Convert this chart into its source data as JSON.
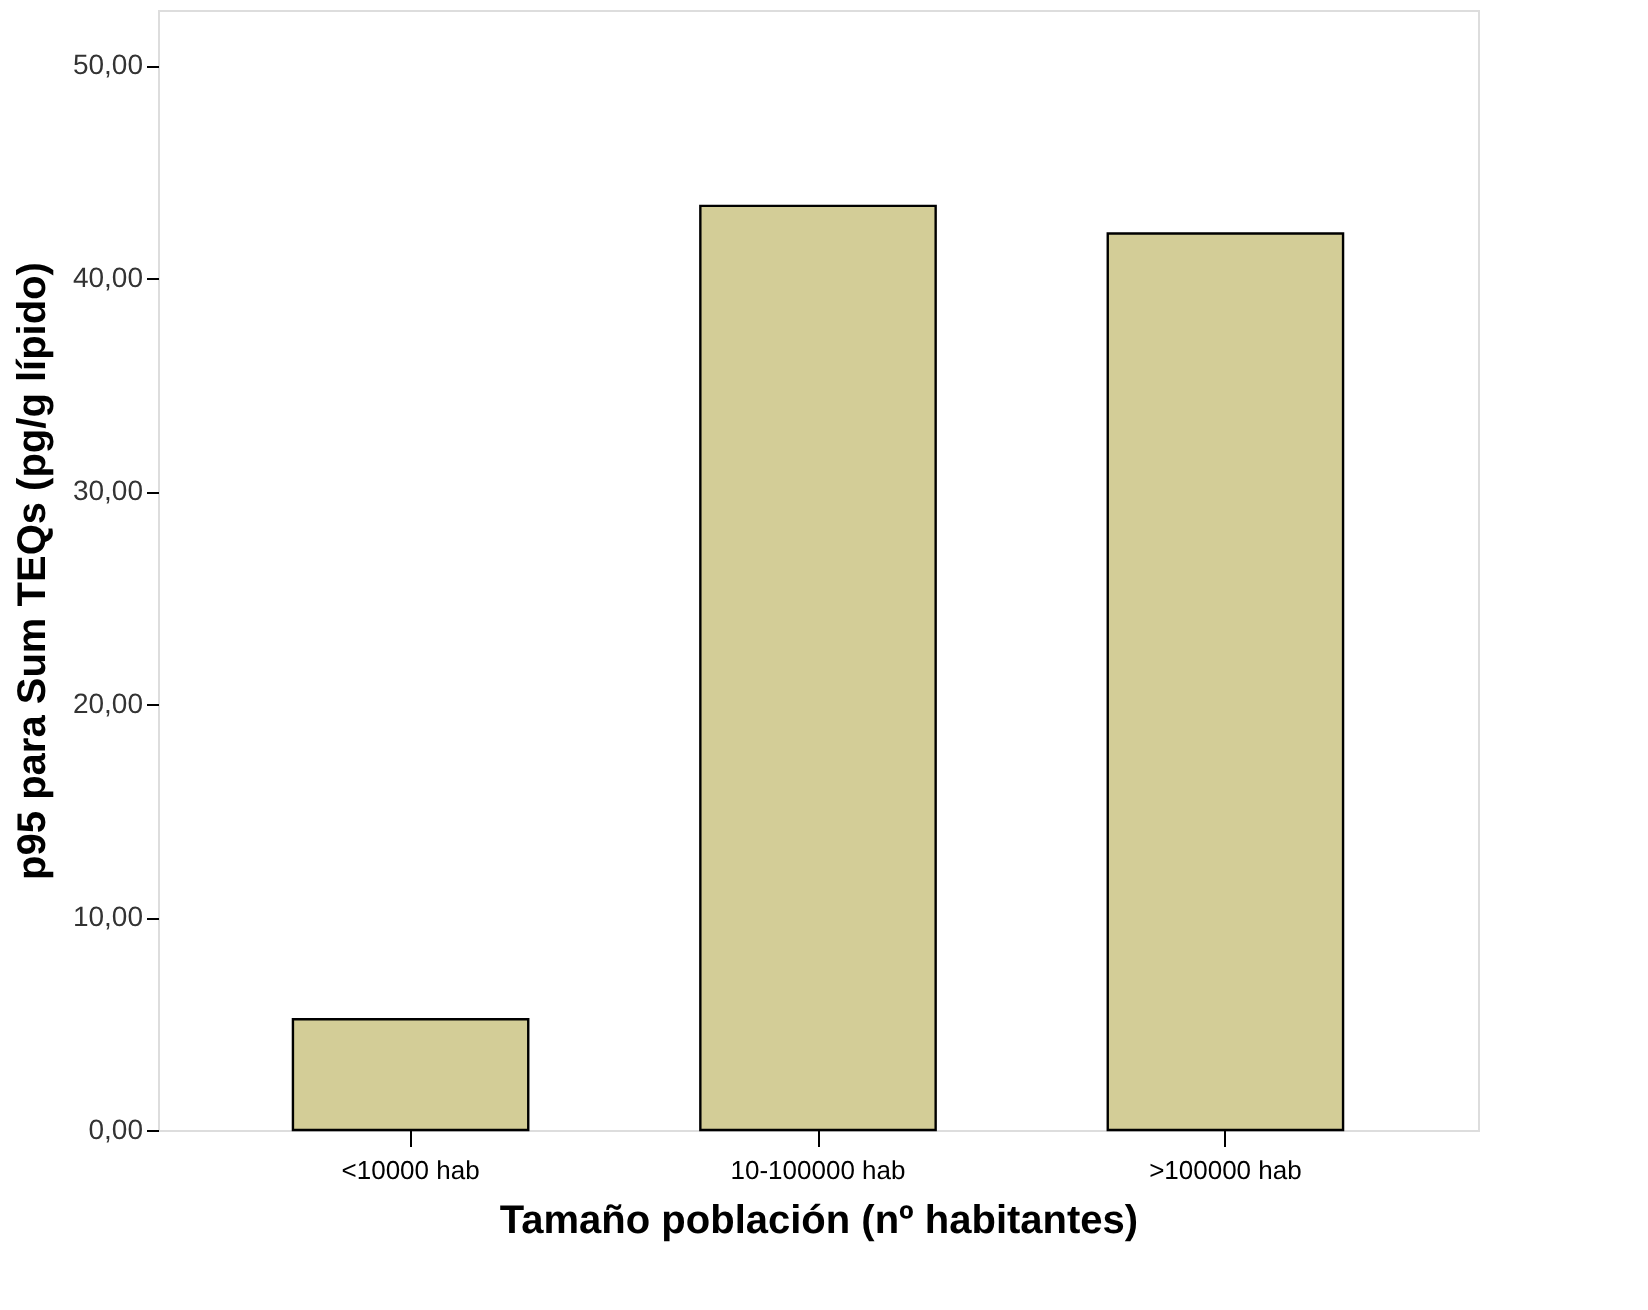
{
  "chart_data": {
    "type": "bar",
    "xlabel": "Tamaño población (nº habitantes)",
    "ylabel": "p95 para Sum TEQs (pg/g lípido)",
    "categories": [
      "<10000 hab",
      "10-100000 hab",
      ">100000 hab"
    ],
    "values": [
      5.2,
      43.4,
      42.1
    ],
    "color": "#d3cd97",
    "ylim": [
      0,
      52.6
    ],
    "yticks": [
      {
        "value": 0,
        "label": "0,00"
      },
      {
        "value": 10,
        "label": "10,00"
      },
      {
        "value": 20,
        "label": "20,00"
      },
      {
        "value": 30,
        "label": "30,00"
      },
      {
        "value": 40,
        "label": "40,00"
      },
      {
        "value": 50,
        "label": "50,00"
      }
    ],
    "grid": false
  }
}
